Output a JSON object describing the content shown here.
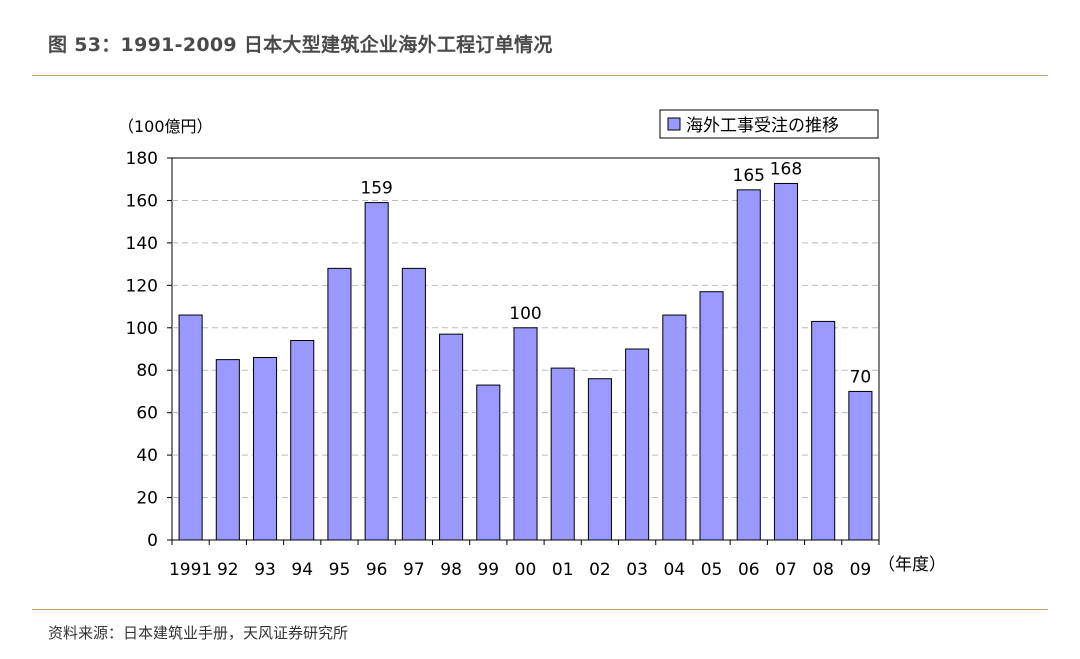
{
  "figure": {
    "title": "图 53：1991-2009 日本大型建筑企业海外工程订单情况",
    "source": "资料来源：日本建筑业手册，天风证券研究所"
  },
  "chart_data": {
    "type": "bar",
    "ylabel": "（100億円）",
    "xlabel": "（年度）",
    "ylim": [
      0,
      180
    ],
    "yticks": [
      0,
      20,
      40,
      60,
      80,
      100,
      120,
      140,
      160,
      180
    ],
    "grid": true,
    "legend_position": "top-right",
    "categories": [
      "1991",
      "92",
      "93",
      "94",
      "95",
      "96",
      "97",
      "98",
      "99",
      "00",
      "01",
      "02",
      "03",
      "04",
      "05",
      "06",
      "07",
      "08",
      "09"
    ],
    "series": [
      {
        "name": "海外工事受注の推移",
        "values": [
          106,
          85,
          86,
          94,
          128,
          159,
          128,
          97,
          73,
          100,
          81,
          76,
          90,
          106,
          117,
          165,
          168,
          103,
          70
        ],
        "color": "#9999ff"
      }
    ],
    "data_labels": [
      {
        "category": "96",
        "text": "159"
      },
      {
        "category": "00",
        "text": "100"
      },
      {
        "category": "06",
        "text": "165"
      },
      {
        "category": "07",
        "text": "168"
      },
      {
        "category": "09",
        "text": "70"
      }
    ]
  }
}
